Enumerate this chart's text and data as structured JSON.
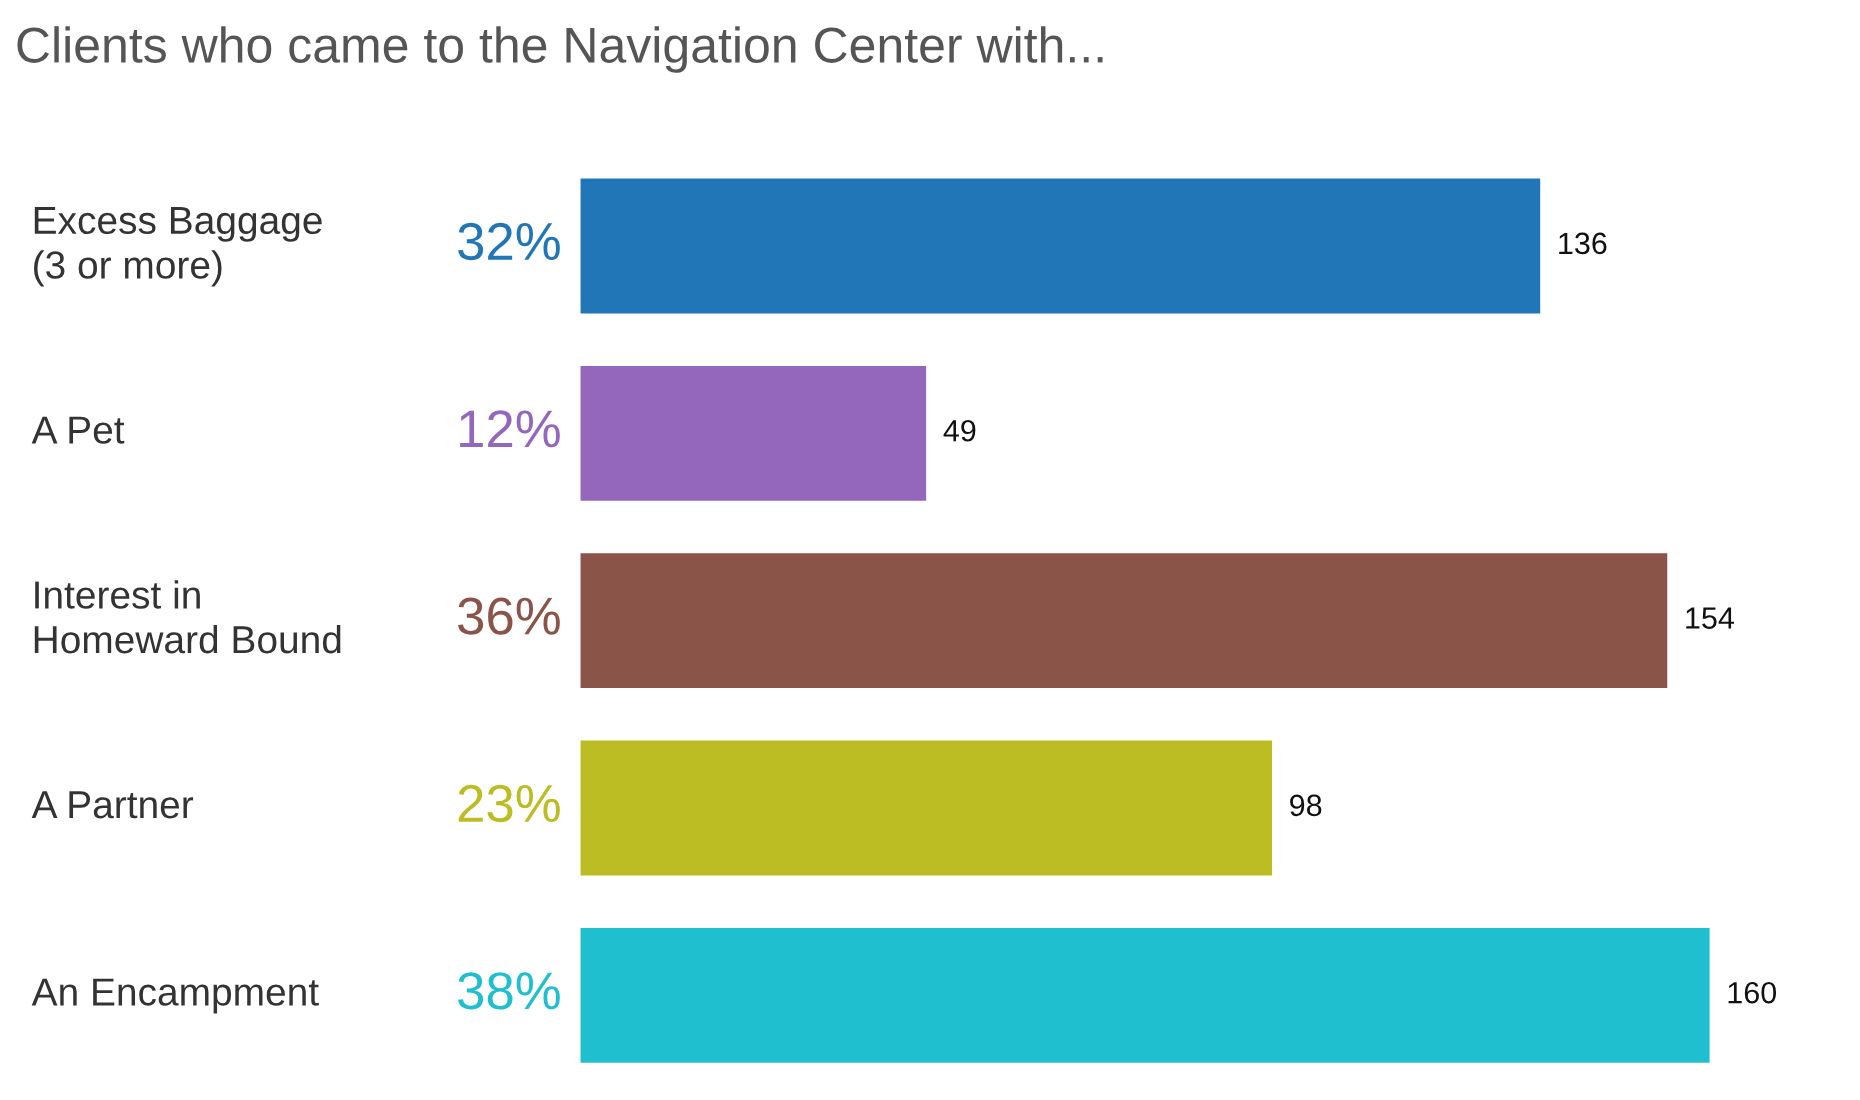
{
  "chart_data": {
    "type": "bar",
    "orientation": "horizontal",
    "title": "Clients who came to the Navigation Center with...",
    "categories": [
      "Excess Baggage\n(3 or more)",
      "A Pet",
      "Interest in\nHomeward Bound",
      "A Partner",
      "An Encampment"
    ],
    "values": [
      136,
      49,
      154,
      98,
      160
    ],
    "colors": [
      "#2176b8",
      "#9467bd",
      "#8a5548",
      "#bcbd22",
      "#1fbfcf"
    ],
    "data_labels": true,
    "annotations": [
      "32%",
      "12%",
      "36%",
      "23%",
      "38%"
    ]
  }
}
